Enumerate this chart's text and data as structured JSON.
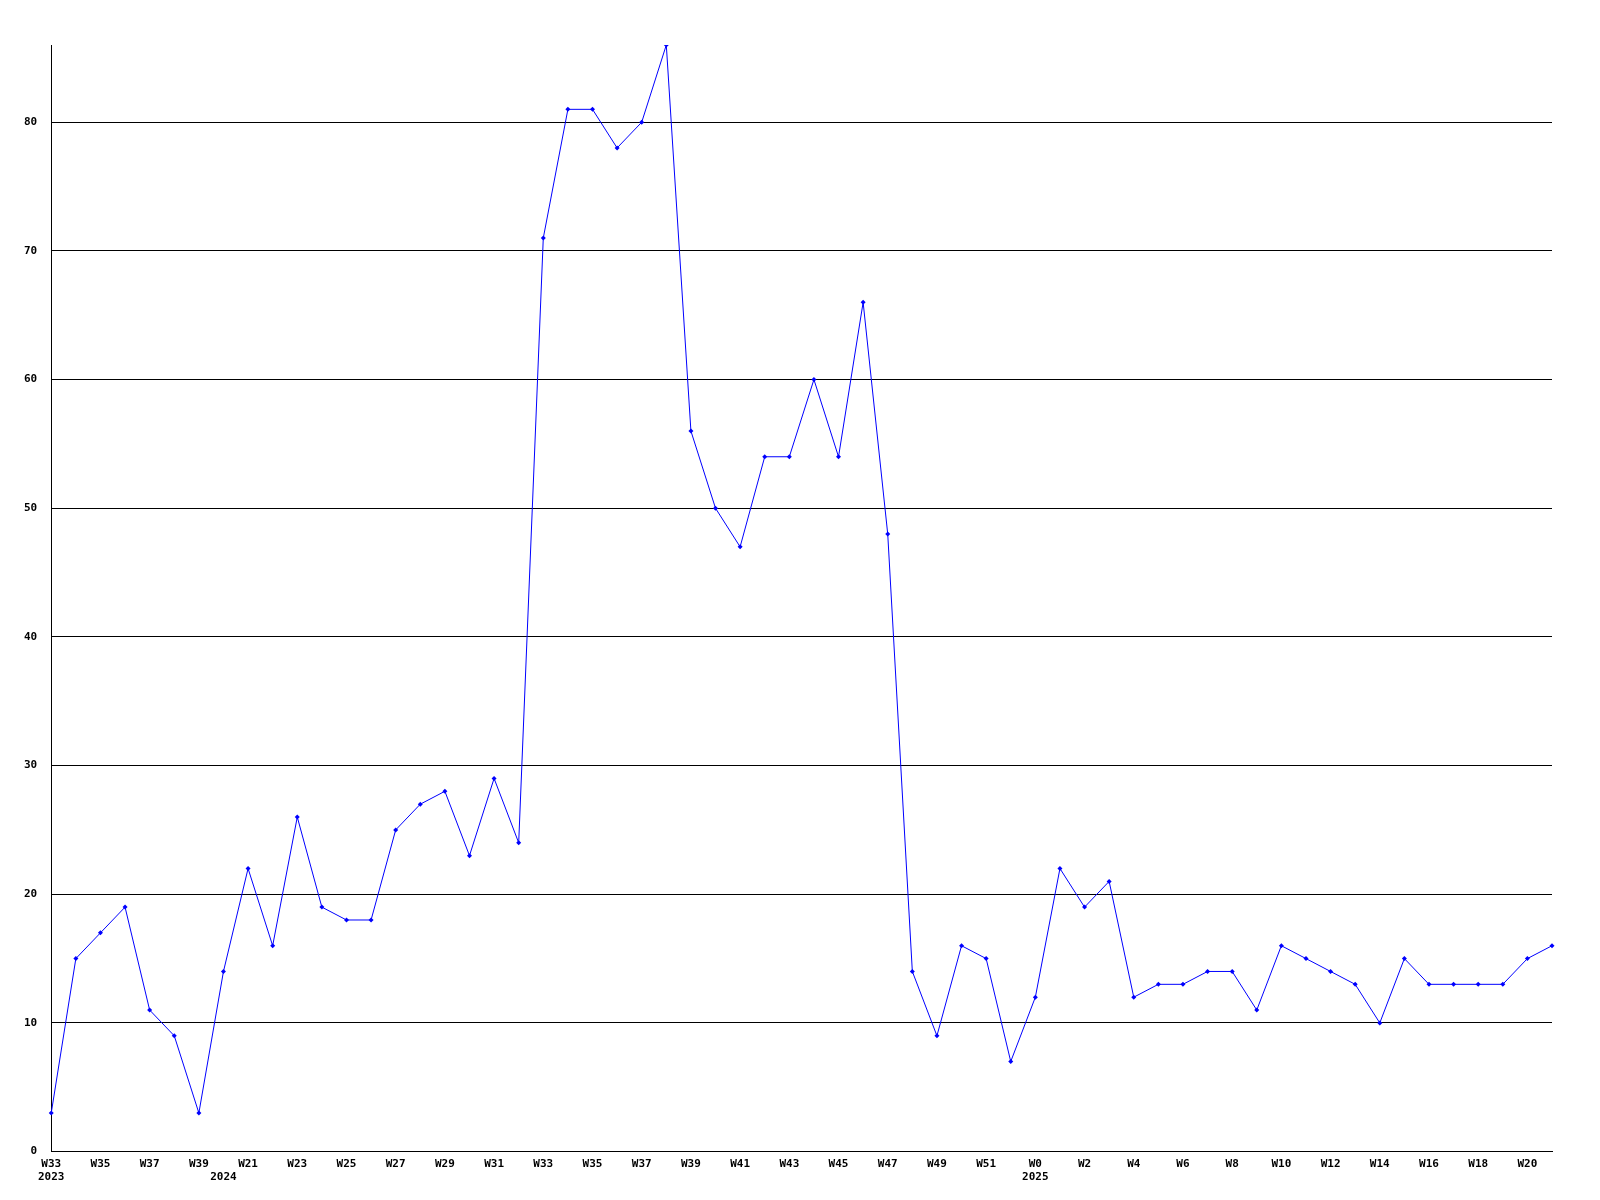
{
  "chart_data": {
    "type": "line",
    "categories": [
      "W33\n2023",
      null,
      "W35",
      null,
      "W37",
      null,
      "W39",
      "\n2024",
      "W21",
      null,
      "W23",
      null,
      "W25",
      null,
      "W27",
      null,
      "W29",
      null,
      "W31",
      null,
      "W33",
      null,
      "W35",
      null,
      "W37",
      null,
      "W39",
      null,
      "W41",
      null,
      "W43",
      null,
      "W45",
      null,
      "W47",
      null,
      "W49",
      null,
      "W51",
      null,
      "W0\n2025",
      null,
      "W2",
      null,
      "W4",
      null,
      "W6",
      null,
      "W8",
      null,
      "W10",
      null,
      "W12",
      null,
      "W14",
      null,
      "W16",
      null,
      "W18",
      null,
      "W20",
      null
    ],
    "series": [
      {
        "color": "#0000ff",
        "values": [
          3,
          15,
          17,
          19,
          11,
          9,
          3,
          14,
          22,
          16,
          26,
          19,
          18,
          18,
          25,
          27,
          28,
          23,
          29,
          24,
          71,
          81,
          81,
          78,
          80,
          86,
          56,
          50,
          47,
          54,
          54,
          60,
          54,
          66,
          48,
          14,
          9,
          16,
          15,
          7,
          12,
          22,
          19,
          21,
          12,
          13,
          13,
          14,
          14,
          11,
          16,
          15,
          14,
          13,
          10,
          15,
          13,
          13,
          13,
          13,
          15,
          16
        ]
      }
    ],
    "ylim": [
      0,
      86
    ],
    "yticks": [
      0,
      10,
      20,
      30,
      40,
      50,
      60,
      70,
      80
    ],
    "grid": "y",
    "legend": false,
    "marker": "diamond",
    "line_style": "solid"
  }
}
